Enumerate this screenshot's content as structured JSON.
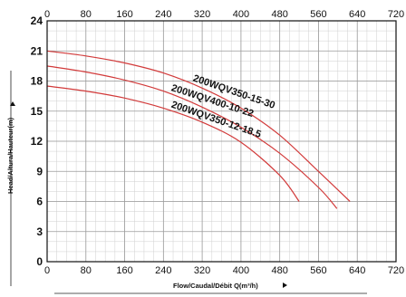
{
  "chart_data": {
    "type": "line",
    "title": "",
    "xlabel": "Flow/Caudal/Débit Q(m³/h)",
    "ylabel": "Head/Altura/Hauteur(m)",
    "xlim": [
      0,
      720
    ],
    "ylim": [
      0,
      24
    ],
    "x_ticks": [
      "0",
      "80",
      "160",
      "240",
      "320",
      "400",
      "480",
      "560",
      "640",
      "720"
    ],
    "y_ticks": [
      "0",
      "3",
      "6",
      "9",
      "12",
      "15",
      "18",
      "21",
      "24"
    ],
    "grid": true,
    "series": [
      {
        "name": "200WQV350-15-30",
        "color": "#d23a3a",
        "x": [
          0,
          80,
          160,
          240,
          320,
          400,
          480,
          560,
          625
        ],
        "y": [
          21.0,
          20.5,
          19.8,
          18.8,
          17.3,
          15.3,
          12.6,
          9.0,
          6.0
        ]
      },
      {
        "name": "200WQV400-10-22",
        "color": "#d23a3a",
        "x": [
          0,
          80,
          160,
          240,
          320,
          400,
          480,
          560,
          598
        ],
        "y": [
          19.5,
          18.9,
          18.1,
          17.0,
          15.4,
          13.4,
          10.8,
          7.4,
          5.3
        ]
      },
      {
        "name": "200WQV350-12-18.5",
        "color": "#d23a3a",
        "x": [
          0,
          80,
          160,
          240,
          320,
          400,
          480,
          520
        ],
        "y": [
          17.5,
          17.0,
          16.3,
          15.3,
          13.9,
          11.9,
          8.6,
          6.0
        ]
      }
    ]
  }
}
